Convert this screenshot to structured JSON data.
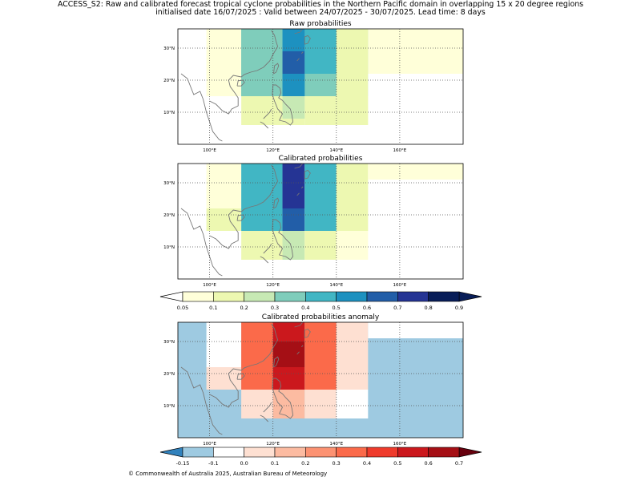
{
  "header": {
    "title_line1": "ACCESS_S2: Raw and calibrated forecast tropical cyclone probabilities in the Northern Pacific domain in overlapping 15 x 20 degree regions",
    "title_line2": "initialised date 16/07/2025 :  Valid between 24/07/2025 - 30/07/2025. Lead time: 8 days"
  },
  "footer": {
    "copyright": "© Commonwealth of Australia 2025, Australian Bureau of Meteorology"
  },
  "chart_data": [
    {
      "type": "heatmap",
      "title": "Raw probabilities",
      "x_ticks": [
        "100°E",
        "120°E",
        "140°E",
        "160°E"
      ],
      "y_ticks": [
        "10°N",
        "20°N",
        "30°N"
      ],
      "xlim": [
        90,
        180
      ],
      "ylim": [
        0,
        36
      ],
      "grid": true,
      "cells": [
        {
          "lon": [
            99,
            110
          ],
          "lat": [
            15,
            23
          ],
          "value": 0.05
        },
        {
          "lon": [
            99,
            110
          ],
          "lat": [
            23,
            36
          ],
          "value": 0.05
        },
        {
          "lon": [
            110,
            120
          ],
          "lat": [
            6,
            15
          ],
          "value": 0.1
        },
        {
          "lon": [
            110,
            120
          ],
          "lat": [
            15,
            36
          ],
          "value": 0.3
        },
        {
          "lon": [
            120,
            130
          ],
          "lat": [
            6,
            15
          ],
          "value": 0.1
        },
        {
          "lon": [
            120,
            130
          ],
          "lat": [
            15,
            22
          ],
          "value": 0.5
        },
        {
          "lon": [
            120,
            130
          ],
          "lat": [
            22,
            36
          ],
          "value": 0.4
        },
        {
          "lon": [
            130,
            140
          ],
          "lat": [
            6,
            15
          ],
          "value": 0.1
        },
        {
          "lon": [
            130,
            140
          ],
          "lat": [
            15,
            22
          ],
          "value": 0.5
        },
        {
          "lon": [
            130,
            140
          ],
          "lat": [
            22,
            36
          ],
          "value": 0.6
        },
        {
          "lon": [
            140,
            150
          ],
          "lat": [
            6,
            15
          ],
          "value": 0.1
        },
        {
          "lon": [
            140,
            150
          ],
          "lat": [
            15,
            22
          ],
          "value": 0.4
        },
        {
          "lon": [
            140,
            150
          ],
          "lat": [
            22,
            36
          ],
          "value": 0.4
        },
        {
          "lon": [
            150,
            180
          ],
          "lat": [
            15,
            36
          ],
          "value": 0.1
        },
        {
          "lon": [
            160,
            180
          ],
          "lat": [
            22,
            36
          ],
          "value": 0.05
        },
        {
          "lon": [
            123,
            130
          ],
          "lat": [
            8,
            15
          ],
          "value": 0.2
        },
        {
          "lon": [
            130,
            140
          ],
          "lat": [
            15,
            22
          ],
          "value": 0.3
        },
        {
          "lon": [
            123,
            130
          ],
          "lat": [
            15,
            22
          ],
          "value": 0.5
        },
        {
          "lon": [
            123,
            130
          ],
          "lat": [
            22,
            29
          ],
          "value": 0.6
        },
        {
          "lon": [
            123,
            130
          ],
          "lat": [
            29,
            36
          ],
          "value": 0.5
        },
        {
          "lon": [
            130,
            140
          ],
          "lat": [
            22,
            36
          ],
          "value": 0.4
        },
        {
          "lon": [
            110,
            123
          ],
          "lat": [
            15,
            36
          ],
          "value": 0.3
        },
        {
          "lon": [
            140,
            150
          ],
          "lat": [
            15,
            36
          ],
          "value": 0.1
        },
        {
          "lon": [
            150,
            160
          ],
          "lat": [
            22,
            36
          ],
          "value": 0.05
        },
        {
          "lon": [
            160,
            180
          ],
          "lat": [
            22,
            36
          ],
          "value": 0.05
        },
        {
          "lon": [
            150,
            180
          ],
          "lat": [
            15,
            22
          ],
          "value": 0.0
        }
      ]
    },
    {
      "type": "heatmap",
      "title": "Calibrated probabilities",
      "x_ticks": [
        "100°E",
        "120°E",
        "140°E",
        "160°E"
      ],
      "y_ticks": [
        "10°N",
        "20°N",
        "30°N"
      ],
      "xlim": [
        90,
        180
      ],
      "ylim": [
        0,
        36
      ],
      "grid": true,
      "cells": [
        {
          "lon": [
            99,
            110
          ],
          "lat": [
            15,
            22
          ],
          "value": 0.1
        },
        {
          "lon": [
            99,
            110
          ],
          "lat": [
            22,
            36
          ],
          "value": 0.05
        },
        {
          "lon": [
            110,
            123
          ],
          "lat": [
            6,
            15
          ],
          "value": 0.1
        },
        {
          "lon": [
            110,
            123
          ],
          "lat": [
            15,
            36
          ],
          "value": 0.4
        },
        {
          "lon": [
            123,
            130
          ],
          "lat": [
            6,
            15
          ],
          "value": 0.2
        },
        {
          "lon": [
            123,
            130
          ],
          "lat": [
            15,
            22
          ],
          "value": 0.6
        },
        {
          "lon": [
            123,
            130
          ],
          "lat": [
            22,
            36
          ],
          "value": 0.7
        },
        {
          "lon": [
            130,
            140
          ],
          "lat": [
            6,
            15
          ],
          "value": 0.1
        },
        {
          "lon": [
            130,
            140
          ],
          "lat": [
            15,
            36
          ],
          "value": 0.4
        },
        {
          "lon": [
            140,
            150
          ],
          "lat": [
            6,
            15
          ],
          "value": 0.05
        },
        {
          "lon": [
            140,
            150
          ],
          "lat": [
            15,
            36
          ],
          "value": 0.1
        },
        {
          "lon": [
            150,
            180
          ],
          "lat": [
            31,
            36
          ],
          "value": 0.05
        }
      ]
    },
    {
      "type": "heatmap",
      "title": "Calibrated probabilities anomaly",
      "x_ticks": [
        "100°E",
        "120°E",
        "140°E",
        "160°E"
      ],
      "y_ticks": [
        "10°N",
        "20°N",
        "30°N"
      ],
      "xlim": [
        90,
        180
      ],
      "ylim": [
        0,
        36
      ],
      "grid": true,
      "background_value": -0.15,
      "cells": [
        {
          "lon": [
            99,
            110
          ],
          "lat": [
            22,
            36
          ],
          "value": -0.1
        },
        {
          "lon": [
            99,
            110
          ],
          "lat": [
            15,
            22
          ],
          "value": 0.0
        },
        {
          "lon": [
            110,
            120
          ],
          "lat": [
            6,
            15
          ],
          "value": 0.0
        },
        {
          "lon": [
            110,
            120
          ],
          "lat": [
            15,
            36
          ],
          "value": 0.3
        },
        {
          "lon": [
            120,
            130
          ],
          "lat": [
            6,
            15
          ],
          "value": 0.1
        },
        {
          "lon": [
            120,
            130
          ],
          "lat": [
            15,
            22
          ],
          "value": 0.5
        },
        {
          "lon": [
            120,
            130
          ],
          "lat": [
            22,
            30
          ],
          "value": 0.6
        },
        {
          "lon": [
            120,
            130
          ],
          "lat": [
            30,
            36
          ],
          "value": 0.5
        },
        {
          "lon": [
            130,
            140
          ],
          "lat": [
            6,
            15
          ],
          "value": 0.0
        },
        {
          "lon": [
            130,
            140
          ],
          "lat": [
            15,
            36
          ],
          "value": 0.3
        },
        {
          "lon": [
            140,
            150
          ],
          "lat": [
            6,
            15
          ],
          "value": -0.1
        },
        {
          "lon": [
            140,
            150
          ],
          "lat": [
            15,
            36
          ],
          "value": 0.0
        },
        {
          "lon": [
            150,
            180
          ],
          "lat": [
            31,
            36
          ],
          "value": -0.1
        }
      ]
    }
  ],
  "colorbars": {
    "probability": {
      "ticks": [
        "0.05",
        "0.1",
        "0.2",
        "0.3",
        "0.4",
        "0.5",
        "0.6",
        "0.7",
        "0.8",
        "0.9"
      ],
      "colors": [
        "#ffffd9",
        "#edf8b1",
        "#c7e9b4",
        "#7fcdbb",
        "#41b6c4",
        "#1d91c0",
        "#225ea8",
        "#253494",
        "#081d58"
      ],
      "under_color": "#ffffff",
      "over_color": "#081d58"
    },
    "anomaly": {
      "ticks": [
        "-0.15",
        "-0.1",
        "0.0",
        "0.1",
        "0.2",
        "0.3",
        "0.4",
        "0.5",
        "0.6",
        "0.7"
      ],
      "colors": [
        "#9ecae1",
        "#ffffff",
        "#fee0d2",
        "#fcbba1",
        "#fc9272",
        "#fb6a4a",
        "#ef3b2c",
        "#cb181d",
        "#a50f15"
      ],
      "under_color": "#3182bd",
      "over_color": "#67000d"
    }
  }
}
